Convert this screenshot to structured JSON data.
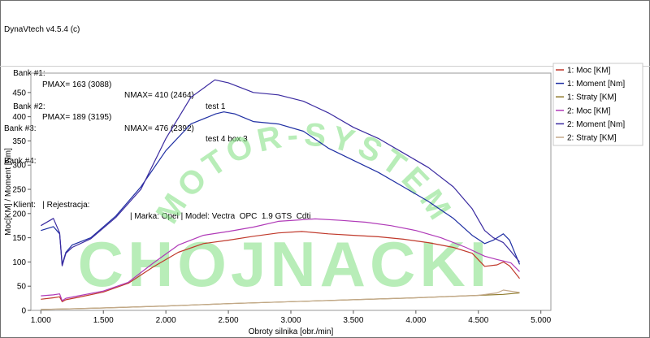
{
  "header": {
    "app_title": "DynaVtech v4.5.4 (c)",
    "bank1": {
      "label": "Bank #1:",
      "pmax": "PMAX= 163 (3088)",
      "nmax": "NMAX= 410 (2464)",
      "note": "test 1"
    },
    "bank2": {
      "label": "Bank #2:",
      "pmax": "PMAX= 189 (3195)",
      "nmax": "NMAX= 476 (2392)",
      "note": "test 4 box 3"
    },
    "bank3": "Bank #3:",
    "bank4": "Bank #4:",
    "client": "Klient:   | Rejestracja:",
    "vehicle": "| Marka: Opel | Model: Vectra  OPC  1.9 GTS  Cdti"
  },
  "watermark": {
    "arc_text": "MOTOR-SYSTEM",
    "main_text": "CHOJNACKI",
    "color": "#7fe07f"
  },
  "chart_data": {
    "type": "line",
    "xlabel": "Obroty silnika [obr./min]",
    "ylabel": "Moc[KM] / Moment [Nm]",
    "xlim": [
      920,
      5080
    ],
    "ylim": [
      0,
      490
    ],
    "xticks": [
      1000,
      1500,
      2000,
      2500,
      3000,
      3500,
      4000,
      4500,
      5000
    ],
    "xtick_labels": [
      "1.000",
      "1.500",
      "2.000",
      "2.500",
      "3.000",
      "3.500",
      "4.000",
      "4.500",
      "5.000"
    ],
    "yticks": [
      0,
      50,
      100,
      150,
      200,
      250,
      300,
      350,
      400,
      450
    ],
    "ytick_labels": [
      "0",
      "50",
      "100",
      "150",
      "200",
      "250",
      "300",
      "350",
      "400",
      "450"
    ],
    "legend_position": "top-right",
    "series": [
      {
        "name": "1: Moc [KM]",
        "color": "#c0392b",
        "x": [
          1000,
          1100,
          1150,
          1170,
          1200,
          1300,
          1500,
          1700,
          1900,
          2100,
          2300,
          2500,
          2700,
          2900,
          3088,
          3300,
          3500,
          3700,
          3900,
          4100,
          4300,
          4450,
          4550,
          4650,
          4700,
          4750,
          4830
        ],
        "y": [
          23,
          26,
          28,
          18,
          22,
          27,
          38,
          56,
          90,
          120,
          138,
          145,
          153,
          160,
          163,
          158,
          155,
          152,
          147,
          140,
          130,
          118,
          91,
          94,
          100,
          92,
          66
        ]
      },
      {
        "name": "1: Moment [Nm]",
        "color": "#1f2fa3",
        "x": [
          1000,
          1100,
          1150,
          1170,
          1200,
          1250,
          1400,
          1600,
          1800,
          2000,
          2200,
          2400,
          2464,
          2550,
          2700,
          2900,
          3100,
          3300,
          3500,
          3700,
          3900,
          4100,
          4300,
          4450,
          4550,
          4620,
          4700,
          4750,
          4830
        ],
        "y": [
          165,
          173,
          158,
          95,
          120,
          135,
          150,
          195,
          255,
          330,
          385,
          406,
          410,
          406,
          390,
          385,
          370,
          335,
          310,
          285,
          255,
          225,
          190,
          155,
          138,
          145,
          158,
          145,
          95
        ]
      },
      {
        "name": "1: Straty [KM]",
        "color": "#8e7a2b",
        "x": [
          1000,
          1200,
          1500,
          2000,
          2500,
          3000,
          3500,
          4000,
          4500,
          4700,
          4830
        ],
        "y": [
          2,
          3,
          5,
          9,
          14,
          18,
          22,
          26,
          31,
          33,
          36
        ]
      },
      {
        "name": "2: Moc [KM]",
        "color": "#b03ab8",
        "x": [
          1000,
          1100,
          1150,
          1170,
          1200,
          1300,
          1500,
          1700,
          1900,
          2100,
          2300,
          2500,
          2700,
          2900,
          3195,
          3400,
          3600,
          3800,
          4000,
          4200,
          4400,
          4550,
          4650,
          4700,
          4760,
          4830
        ],
        "y": [
          30,
          32,
          34,
          20,
          25,
          30,
          40,
          58,
          98,
          135,
          155,
          163,
          172,
          184,
          189,
          186,
          182,
          175,
          165,
          150,
          130,
          112,
          105,
          102,
          98,
          80
        ]
      },
      {
        "name": "2: Moment [Nm]",
        "color": "#3a2aa0",
        "x": [
          1000,
          1100,
          1150,
          1170,
          1200,
          1250,
          1400,
          1600,
          1800,
          2000,
          2200,
          2392,
          2500,
          2700,
          2900,
          3100,
          3300,
          3500,
          3700,
          3900,
          4100,
          4300,
          4450,
          4550,
          4620,
          4700,
          4750,
          4830
        ],
        "y": [
          175,
          190,
          160,
          92,
          118,
          130,
          148,
          192,
          250,
          355,
          440,
          476,
          470,
          450,
          445,
          432,
          408,
          378,
          355,
          325,
          295,
          255,
          210,
          165,
          150,
          140,
          125,
          100
        ]
      },
      {
        "name": "2: Straty [KM]",
        "color": "#c4a98a",
        "x": [
          1000,
          1200,
          1500,
          2000,
          2500,
          3000,
          3500,
          4000,
          4500,
          4650,
          4700,
          4830
        ],
        "y": [
          2,
          3,
          5,
          9,
          14,
          18,
          22,
          26,
          31,
          36,
          42,
          37
        ]
      }
    ]
  }
}
